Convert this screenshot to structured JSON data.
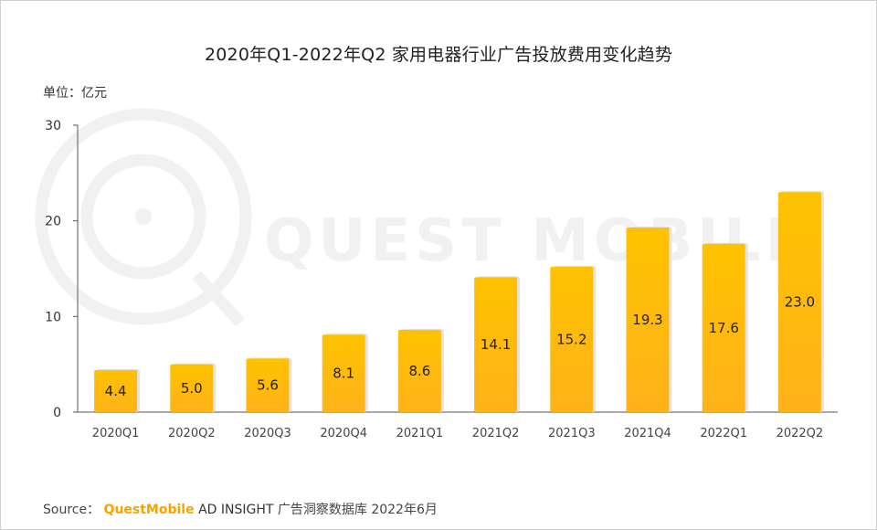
{
  "title": "2020年Q1-2022年Q2 家用电器行业广告投放费用变化趋势",
  "unit_label": "单位：亿元",
  "watermark": "QUEST MOBILE",
  "source": {
    "prefix": "Source：",
    "brand": "QuestMobile",
    "product": "AD INSIGHT",
    "rest": "广告洞察数据库 2022年6月"
  },
  "colors": {
    "bar_top": "#ffc200",
    "bar_bottom": "#ffb21a",
    "bar_shadow": "#e3e3e3",
    "axis": "#555555",
    "brand": "#f5a300",
    "watermark": "#f1f1f1"
  },
  "chart_data": {
    "type": "bar",
    "title": "2020年Q1-2022年Q2 家用电器行业广告投放费用变化趋势",
    "ylabel": "单位：亿元",
    "xlabel": "",
    "categories": [
      "2020Q1",
      "2020Q2",
      "2020Q3",
      "2020Q4",
      "2021Q1",
      "2021Q2",
      "2021Q3",
      "2021Q4",
      "2022Q1",
      "2022Q2"
    ],
    "values": [
      4.4,
      5.0,
      5.6,
      8.1,
      8.6,
      14.1,
      15.2,
      19.3,
      17.6,
      23.0
    ],
    "value_labels": [
      "4.4",
      "5.0",
      "5.6",
      "8.1",
      "8.6",
      "14.1",
      "15.2",
      "19.3",
      "17.6",
      "23.0"
    ],
    "ylim": [
      0,
      30
    ],
    "yticks": [
      0,
      10,
      20,
      30
    ],
    "ytick_labels": [
      "0",
      "10",
      "20",
      "30"
    ],
    "grid": false,
    "legend": "none"
  }
}
